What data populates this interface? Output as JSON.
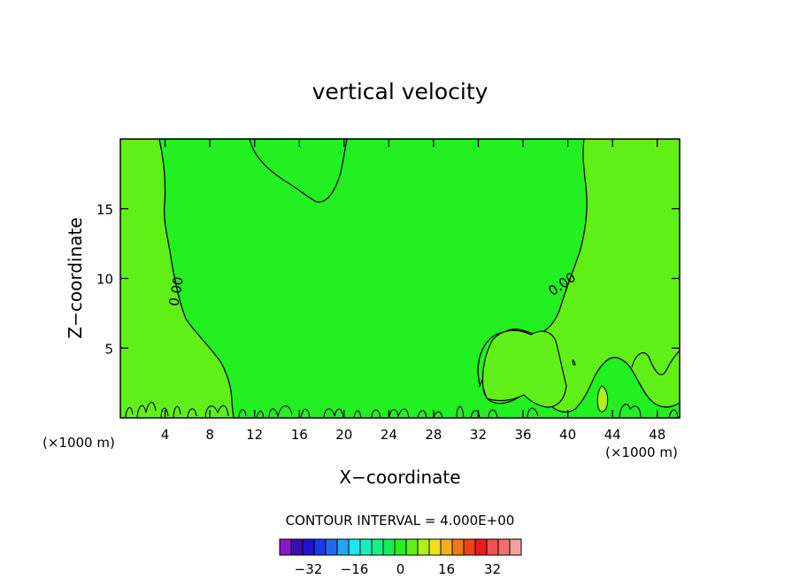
{
  "chart_data": {
    "type": "heatmap",
    "title": "vertical velocity",
    "xlabel": "X−coordinate",
    "ylabel": "Z−coordinate",
    "x_unit_left": "(×1000 m)",
    "x_unit_right": "(×1000 m)",
    "xlim": [
      0,
      50
    ],
    "ylim": [
      0,
      20
    ],
    "x_ticks": [
      4,
      8,
      12,
      16,
      20,
      24,
      28,
      32,
      36,
      40,
      44,
      48
    ],
    "x_tick_labels": [
      "4",
      "8",
      "12",
      "16",
      "20",
      "24",
      "28",
      "32",
      "36",
      "40",
      "44",
      "48"
    ],
    "y_ticks": [
      5,
      10,
      15
    ],
    "y_tick_labels": [
      "5",
      "10",
      "15"
    ],
    "contour_labels": [
      {
        "text": "0.00",
        "x": 5.5,
        "y": 9.0,
        "angle": -80
      },
      {
        "text": "0.00",
        "x": 40.0,
        "y": 9.5,
        "angle": -35
      }
    ],
    "contour_interval_text": "CONTOUR INTERVAL = 4.000E+00",
    "colorbar": {
      "colors": [
        "#8a18c8",
        "#3a10b0",
        "#1c14d0",
        "#1838f0",
        "#1e6cf5",
        "#1ea8f5",
        "#18e8f0",
        "#18f0c0",
        "#18f08a",
        "#18ee55",
        "#22f020",
        "#60f018",
        "#b0f018",
        "#f0e018",
        "#f0b018",
        "#f07818",
        "#f04018",
        "#f01818",
        "#f05050",
        "#f07070",
        "#f5a0a0"
      ],
      "tick_labels": [
        "−32",
        "−16",
        "0",
        "16",
        "32"
      ]
    },
    "regions": {
      "background_color": "#22f020",
      "low_positive_color": "#60f018",
      "positive_patch_color": "#b0f018"
    }
  }
}
